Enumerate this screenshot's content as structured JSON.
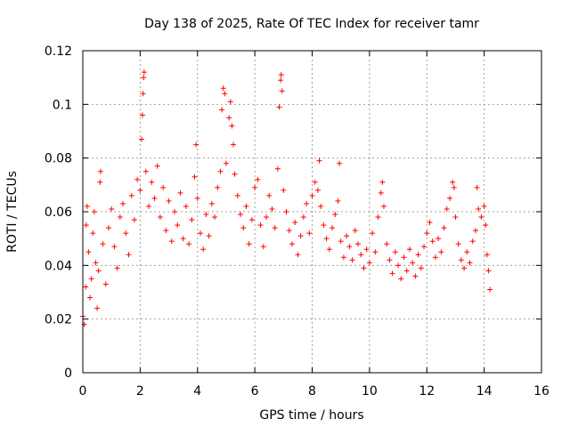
{
  "chart_data": {
    "type": "scatter",
    "title": "Day 138 of 2025, Rate Of TEC Index for receiver tamr",
    "xlabel": "GPS time / hours",
    "ylabel": "ROTI / TECUs",
    "xlim": [
      0,
      16
    ],
    "ylim": [
      0,
      0.12
    ],
    "xticks": [
      0,
      2,
      4,
      6,
      8,
      10,
      12,
      14,
      16
    ],
    "yticks": [
      0,
      0.02,
      0.04,
      0.06,
      0.08,
      0.1,
      0.12
    ],
    "xtick_labels": [
      "0",
      "2",
      "4",
      "6",
      "8",
      "10",
      "12",
      "14",
      "16"
    ],
    "ytick_labels": [
      "0",
      "0.02",
      "0.04",
      "0.06",
      "0.08",
      "0.1",
      "0.12"
    ],
    "grid": true,
    "marker": "+",
    "color": "#ff0000",
    "series": [
      {
        "name": "ROTI",
        "points": [
          [
            0.0,
            0.021
          ],
          [
            0.05,
            0.018
          ],
          [
            0.1,
            0.032
          ],
          [
            0.12,
            0.055
          ],
          [
            0.15,
            0.062
          ],
          [
            0.2,
            0.045
          ],
          [
            0.25,
            0.028
          ],
          [
            0.3,
            0.035
          ],
          [
            0.35,
            0.052
          ],
          [
            0.4,
            0.06
          ],
          [
            0.45,
            0.041
          ],
          [
            0.5,
            0.024
          ],
          [
            0.55,
            0.038
          ],
          [
            0.6,
            0.071
          ],
          [
            0.62,
            0.075
          ],
          [
            0.7,
            0.048
          ],
          [
            0.8,
            0.033
          ],
          [
            0.9,
            0.054
          ],
          [
            1.0,
            0.061
          ],
          [
            1.1,
            0.047
          ],
          [
            1.2,
            0.039
          ],
          [
            1.3,
            0.058
          ],
          [
            1.4,
            0.063
          ],
          [
            1.5,
            0.052
          ],
          [
            1.6,
            0.044
          ],
          [
            1.7,
            0.066
          ],
          [
            1.8,
            0.057
          ],
          [
            1.9,
            0.072
          ],
          [
            2.0,
            0.068
          ],
          [
            2.05,
            0.087
          ],
          [
            2.08,
            0.096
          ],
          [
            2.1,
            0.104
          ],
          [
            2.12,
            0.11
          ],
          [
            2.14,
            0.112
          ],
          [
            2.2,
            0.075
          ],
          [
            2.3,
            0.062
          ],
          [
            2.4,
            0.071
          ],
          [
            2.5,
            0.065
          ],
          [
            2.6,
            0.077
          ],
          [
            2.7,
            0.058
          ],
          [
            2.8,
            0.069
          ],
          [
            2.9,
            0.053
          ],
          [
            3.0,
            0.064
          ],
          [
            3.1,
            0.049
          ],
          [
            3.2,
            0.06
          ],
          [
            3.3,
            0.055
          ],
          [
            3.4,
            0.067
          ],
          [
            3.5,
            0.05
          ],
          [
            3.6,
            0.062
          ],
          [
            3.7,
            0.048
          ],
          [
            3.8,
            0.057
          ],
          [
            3.9,
            0.073
          ],
          [
            3.95,
            0.085
          ],
          [
            4.0,
            0.065
          ],
          [
            4.1,
            0.052
          ],
          [
            4.2,
            0.046
          ],
          [
            4.3,
            0.059
          ],
          [
            4.4,
            0.051
          ],
          [
            4.5,
            0.063
          ],
          [
            4.6,
            0.058
          ],
          [
            4.7,
            0.069
          ],
          [
            4.8,
            0.075
          ],
          [
            4.85,
            0.098
          ],
          [
            4.9,
            0.106
          ],
          [
            4.95,
            0.104
          ],
          [
            5.0,
            0.078
          ],
          [
            5.1,
            0.095
          ],
          [
            5.15,
            0.101
          ],
          [
            5.2,
            0.092
          ],
          [
            5.25,
            0.085
          ],
          [
            5.3,
            0.074
          ],
          [
            5.4,
            0.066
          ],
          [
            5.5,
            0.059
          ],
          [
            5.6,
            0.054
          ],
          [
            5.7,
            0.062
          ],
          [
            5.8,
            0.048
          ],
          [
            5.9,
            0.057
          ],
          [
            6.0,
            0.069
          ],
          [
            6.1,
            0.072
          ],
          [
            6.2,
            0.055
          ],
          [
            6.3,
            0.047
          ],
          [
            6.4,
            0.058
          ],
          [
            6.5,
            0.066
          ],
          [
            6.6,
            0.061
          ],
          [
            6.7,
            0.054
          ],
          [
            6.8,
            0.076
          ],
          [
            6.85,
            0.099
          ],
          [
            6.9,
            0.109
          ],
          [
            6.92,
            0.111
          ],
          [
            6.95,
            0.105
          ],
          [
            7.0,
            0.068
          ],
          [
            7.1,
            0.06
          ],
          [
            7.2,
            0.053
          ],
          [
            7.3,
            0.048
          ],
          [
            7.4,
            0.056
          ],
          [
            7.5,
            0.044
          ],
          [
            7.6,
            0.051
          ],
          [
            7.7,
            0.058
          ],
          [
            7.8,
            0.063
          ],
          [
            7.9,
            0.052
          ],
          [
            8.0,
            0.066
          ],
          [
            8.1,
            0.071
          ],
          [
            8.2,
            0.068
          ],
          [
            8.25,
            0.079
          ],
          [
            8.3,
            0.062
          ],
          [
            8.4,
            0.055
          ],
          [
            8.5,
            0.05
          ],
          [
            8.6,
            0.046
          ],
          [
            8.7,
            0.054
          ],
          [
            8.8,
            0.059
          ],
          [
            8.9,
            0.064
          ],
          [
            8.95,
            0.078
          ],
          [
            9.0,
            0.049
          ],
          [
            9.1,
            0.043
          ],
          [
            9.2,
            0.051
          ],
          [
            9.3,
            0.047
          ],
          [
            9.4,
            0.042
          ],
          [
            9.5,
            0.053
          ],
          [
            9.6,
            0.048
          ],
          [
            9.7,
            0.044
          ],
          [
            9.8,
            0.039
          ],
          [
            9.9,
            0.046
          ],
          [
            10.0,
            0.041
          ],
          [
            10.1,
            0.052
          ],
          [
            10.2,
            0.045
          ],
          [
            10.3,
            0.058
          ],
          [
            10.4,
            0.067
          ],
          [
            10.45,
            0.071
          ],
          [
            10.5,
            0.062
          ],
          [
            10.6,
            0.048
          ],
          [
            10.7,
            0.042
          ],
          [
            10.8,
            0.037
          ],
          [
            10.9,
            0.045
          ],
          [
            11.0,
            0.04
          ],
          [
            11.1,
            0.035
          ],
          [
            11.2,
            0.043
          ],
          [
            11.3,
            0.038
          ],
          [
            11.4,
            0.046
          ],
          [
            11.5,
            0.041
          ],
          [
            11.6,
            0.036
          ],
          [
            11.7,
            0.044
          ],
          [
            11.8,
            0.039
          ],
          [
            11.9,
            0.047
          ],
          [
            12.0,
            0.052
          ],
          [
            12.1,
            0.056
          ],
          [
            12.2,
            0.049
          ],
          [
            12.3,
            0.043
          ],
          [
            12.4,
            0.05
          ],
          [
            12.5,
            0.045
          ],
          [
            12.6,
            0.054
          ],
          [
            12.7,
            0.061
          ],
          [
            12.8,
            0.065
          ],
          [
            12.9,
            0.071
          ],
          [
            12.95,
            0.069
          ],
          [
            13.0,
            0.058
          ],
          [
            13.1,
            0.048
          ],
          [
            13.2,
            0.042
          ],
          [
            13.3,
            0.039
          ],
          [
            13.4,
            0.045
          ],
          [
            13.5,
            0.041
          ],
          [
            13.6,
            0.049
          ],
          [
            13.7,
            0.053
          ],
          [
            13.75,
            0.069
          ],
          [
            13.8,
            0.061
          ],
          [
            13.9,
            0.058
          ],
          [
            14.0,
            0.062
          ],
          [
            14.05,
            0.055
          ],
          [
            14.1,
            0.044
          ],
          [
            14.15,
            0.038
          ],
          [
            14.2,
            0.031
          ]
        ]
      }
    ]
  }
}
